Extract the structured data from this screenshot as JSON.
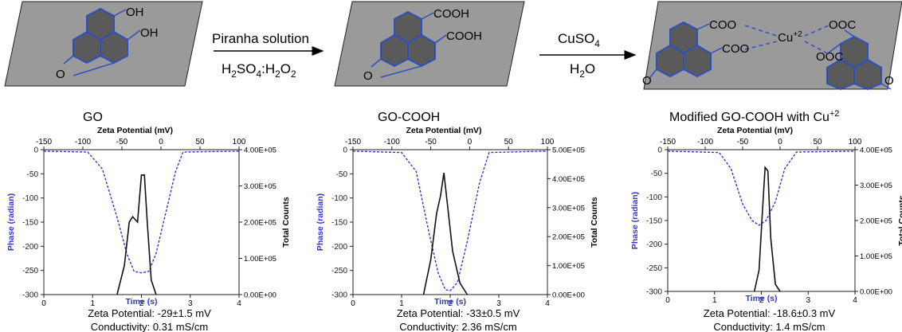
{
  "reaction": {
    "stage1": {
      "label": "GO",
      "groups": [
        "OH",
        "OH"
      ],
      "ring_o": "O"
    },
    "arrow1": {
      "reagent_top": "Piranha solution",
      "reagent_bottom": {
        "a": "H",
        "a_sub": "2",
        "b": "SO",
        "b_sub": "4",
        "c": ":H",
        "c_sub": "2",
        "d": "O",
        "d_sub": "2"
      }
    },
    "stage2": {
      "label": "GO-COOH",
      "groups": [
        "COOH",
        "COOH"
      ],
      "ring_o": "O"
    },
    "arrow2": {
      "reagent_top": {
        "a": "CuSO",
        "a_sub": "4"
      },
      "reagent_bottom": {
        "a": "H",
        "a_sub": "2",
        "b": "O"
      }
    },
    "stage3": {
      "label": {
        "text": "Modified GO-COOH with Cu",
        "sup": "+2"
      },
      "groups_left": [
        "COO",
        "COO"
      ],
      "groups_right": [
        "OOC",
        "OOC"
      ],
      "ion": {
        "text": "Cu",
        "sup": "+2"
      },
      "ring_o": [
        "O",
        "O"
      ]
    }
  },
  "panels": [
    {
      "top_axis_label": "Zeta Potential (mV)",
      "top_ticks": [
        "-150",
        "-100",
        "-50",
        "0",
        "50",
        "100"
      ],
      "left_axis_label": "Phase (radian)",
      "left_ticks": [
        "0",
        "-50",
        "-100",
        "-150",
        "-200",
        "-250",
        "-300"
      ],
      "bottom_axis_label": "Time (s)",
      "bottom_ticks": [
        "0",
        "1",
        "2",
        "3",
        "4"
      ],
      "right_axis_label": "Total Counts",
      "right_ticks": [
        "4.00E+05",
        "3.00E+05",
        "2.00E+05",
        "1.00E+05",
        "0.00E+00"
      ],
      "zeta": "Zeta Potential: -29±1.5 mV",
      "conductivity": "Conductivity: 0.31 mS/cm"
    },
    {
      "top_axis_label": "Zeta Potential (mV)",
      "top_ticks": [
        "-150",
        "-100",
        "-50",
        "0",
        "50",
        "100"
      ],
      "left_axis_label": "Phase (radian)",
      "left_ticks": [
        "0",
        "-50",
        "-100",
        "-150",
        "-200",
        "-250",
        "-300"
      ],
      "bottom_axis_label": "Time (s)",
      "bottom_ticks": [
        "0",
        "1",
        "2",
        "3",
        "4"
      ],
      "right_axis_label": "Total Counts",
      "right_ticks": [
        "5.00E+05",
        "4.00E+05",
        "3.00E+05",
        "2.00E+05",
        "1.00E+05",
        "0.00E+00"
      ],
      "zeta": "Zeta Potential: -33±0.5 mV",
      "conductivity": "Conductivity: 2.36 mS/cm"
    },
    {
      "top_axis_label": "Zeta Potential (mV)",
      "top_ticks": [
        "-150",
        "-100",
        "-50",
        "0",
        "50",
        "100"
      ],
      "left_axis_label": "Phase (radian)",
      "left_ticks": [
        "0",
        "-50",
        "-100",
        "-150",
        "-200",
        "-250",
        "-300"
      ],
      "bottom_axis_label": "Time (s)",
      "bottom_ticks": [
        "0",
        "1",
        "2",
        "3",
        "4"
      ],
      "right_axis_label": "Total Counts",
      "right_ticks": [
        "4.00E+05",
        "3.00E+05",
        "2.00E+05",
        "1.00E+05",
        "0.00E+00"
      ],
      "zeta": "Zeta Potential: -18.6±0.3 mV",
      "conductivity": "Conductivity: 1.4 mS/cm"
    }
  ],
  "chart_data": [
    {
      "type": "line",
      "xlim": [
        0,
        4
      ],
      "ylim": [
        -300,
        0
      ],
      "y2lim": [
        0,
        400000
      ],
      "x2lim": [
        -150,
        100
      ],
      "series": [
        {
          "axis": "zeta-phase",
          "color": "#3333cc",
          "x": [
            0.0,
            0.9,
            1.2,
            1.5,
            1.7,
            1.85,
            2.0,
            2.15,
            2.3,
            2.5,
            2.7,
            2.85,
            4.0
          ],
          "y": [
            -3,
            -5,
            -40,
            -140,
            -215,
            -252,
            -255,
            -252,
            -215,
            -130,
            -45,
            -5,
            -3
          ]
        },
        {
          "axis": "counts",
          "color": "#111111",
          "x": [
            1.5,
            1.65,
            1.75,
            1.82,
            1.92,
            2.0,
            2.06,
            2.12,
            2.2,
            2.3
          ],
          "y": [
            0,
            80000,
            200000,
            215000,
            200000,
            330000,
            330000,
            200000,
            40000,
            0
          ]
        }
      ]
    },
    {
      "type": "line",
      "xlim": [
        0,
        4
      ],
      "ylim": [
        -300,
        0
      ],
      "y2lim": [
        0,
        500000
      ],
      "x2lim": [
        -150,
        100
      ],
      "series": [
        {
          "axis": "zeta-phase",
          "color": "#3333cc",
          "x": [
            0.0,
            1.0,
            1.3,
            1.55,
            1.75,
            1.9,
            2.0,
            2.15,
            2.35,
            2.6,
            2.8,
            4.0
          ],
          "y": [
            -3,
            -6,
            -45,
            -165,
            -255,
            -290,
            -292,
            -275,
            -190,
            -70,
            -6,
            -3
          ]
        },
        {
          "axis": "counts",
          "color": "#111111",
          "x": [
            1.45,
            1.6,
            1.72,
            1.8,
            1.87,
            1.95,
            2.05,
            2.2,
            2.35
          ],
          "y": [
            0,
            120000,
            280000,
            340000,
            420000,
            300000,
            150000,
            40000,
            0
          ]
        }
      ]
    },
    {
      "type": "line",
      "xlim": [
        0,
        4
      ],
      "ylim": [
        -300,
        0
      ],
      "y2lim": [
        0,
        400000
      ],
      "x2lim": [
        -150,
        100
      ],
      "series": [
        {
          "axis": "zeta-phase",
          "color": "#3333cc",
          "x": [
            0.0,
            1.1,
            1.35,
            1.6,
            1.8,
            1.95,
            2.1,
            2.3,
            2.5,
            2.75,
            4.0
          ],
          "y": [
            -3,
            -6,
            -40,
            -115,
            -150,
            -160,
            -150,
            -110,
            -40,
            -5,
            -3
          ]
        },
        {
          "axis": "counts",
          "color": "#111111",
          "x": [
            1.85,
            1.95,
            2.02,
            2.08,
            2.14,
            2.2,
            2.3,
            2.4
          ],
          "y": [
            0,
            60000,
            220000,
            350000,
            340000,
            150000,
            20000,
            0
          ]
        }
      ]
    }
  ]
}
